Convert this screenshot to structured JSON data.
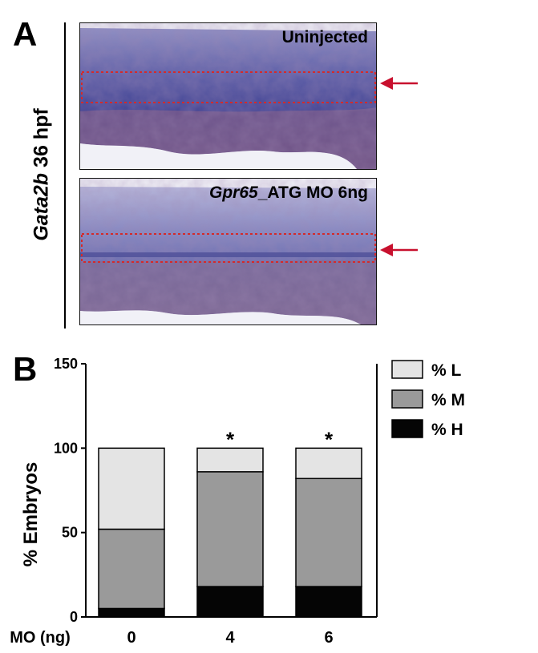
{
  "panel_a": {
    "letter": "A",
    "side_label_italic": "Gata2b",
    "side_label_rest": " 36 hpf",
    "images": [
      {
        "label_italic": "",
        "label_rest": "Uninjected"
      },
      {
        "label_italic": "Gpr65",
        "label_rest": "_ATG MO 6ng"
      }
    ],
    "arrow_color": "#c8102e",
    "box_color": "#d42a2a"
  },
  "panel_b": {
    "letter": "B"
  },
  "chart_data": {
    "type": "bar",
    "stacked": true,
    "categories": [
      "0",
      "4",
      "6"
    ],
    "xlabel": "MO (ng)",
    "ylabel": "% Embryos",
    "ylim": [
      0,
      150
    ],
    "yticks": [
      "0",
      "50",
      "100",
      "150"
    ],
    "series": [
      {
        "name": "% H",
        "values": [
          5,
          18,
          18
        ],
        "color": "#050505"
      },
      {
        "name": "% M",
        "values": [
          47,
          68,
          64
        ],
        "color": "#9a9a9a"
      },
      {
        "name": "% L",
        "values": [
          48,
          14,
          18
        ],
        "color": "#e4e4e4"
      }
    ],
    "legend_order": [
      "% L",
      "% M",
      "% H"
    ],
    "legend_position": "top-right",
    "annotations": [
      "",
      "*",
      "*"
    ]
  }
}
